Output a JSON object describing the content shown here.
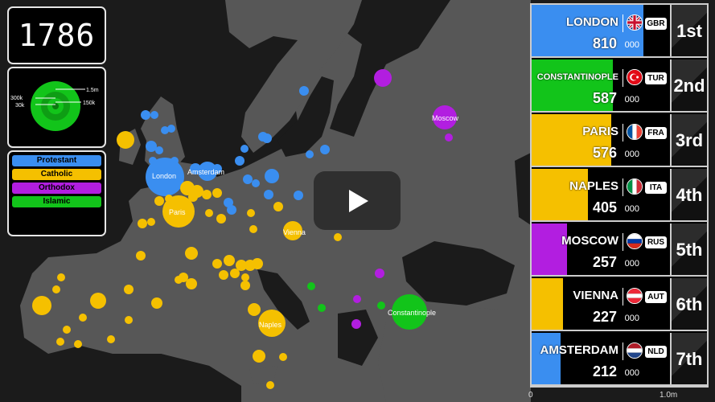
{
  "year": "1786",
  "scale": {
    "l1": "1.5m",
    "l2": "300k",
    "l3": "150k",
    "l4": "30k"
  },
  "legend": [
    {
      "label": "Protestant",
      "color": "#3a8ef0"
    },
    {
      "label": "Catholic",
      "color": "#f5c000"
    },
    {
      "label": "Orthodox",
      "color": "#b21ee0"
    },
    {
      "label": "Islamic",
      "color": "#12c41a"
    }
  ],
  "map_labels": {
    "london": "London",
    "amsterdam": "Amsterdam",
    "paris": "Paris",
    "vienna": "Vienna",
    "naples": "Naples",
    "constantinople": "Constantinople",
    "moscow": "Moscow"
  },
  "rankings": [
    {
      "rank": "1st",
      "city": "LONDON",
      "code": "GBR",
      "pop": "810",
      "unit": "000",
      "color": "#3a8ef0",
      "fraction": 0.81,
      "flag": "gbr-flag-icon"
    },
    {
      "rank": "2nd",
      "city": "CONSTANTINOPLE",
      "code": "TUR",
      "pop": "587",
      "unit": "000",
      "color": "#12c41a",
      "fraction": 0.587,
      "flag": "tur-flag-icon"
    },
    {
      "rank": "3rd",
      "city": "PARIS",
      "code": "FRA",
      "pop": "576",
      "unit": "000",
      "color": "#f5c000",
      "fraction": 0.576,
      "flag": "fra-flag-icon"
    },
    {
      "rank": "4th",
      "city": "NAPLES",
      "code": "ITA",
      "pop": "405",
      "unit": "000",
      "color": "#f5c000",
      "fraction": 0.405,
      "flag": "ita-flag-icon"
    },
    {
      "rank": "5th",
      "city": "MOSCOW",
      "code": "RUS",
      "pop": "257",
      "unit": "000",
      "color": "#b21ee0",
      "fraction": 0.257,
      "flag": "rus-flag-icon"
    },
    {
      "rank": "6th",
      "city": "VIENNA",
      "code": "AUT",
      "pop": "227",
      "unit": "000",
      "color": "#f5c000",
      "fraction": 0.227,
      "flag": "aut-flag-icon"
    },
    {
      "rank": "7th",
      "city": "AMSTERDAM",
      "code": "NLD",
      "pop": "212",
      "unit": "000",
      "color": "#3a8ef0",
      "fraction": 0.212,
      "flag": "nld-flag-icon"
    }
  ],
  "axis": {
    "min": "0",
    "max": "1.0m"
  }
}
